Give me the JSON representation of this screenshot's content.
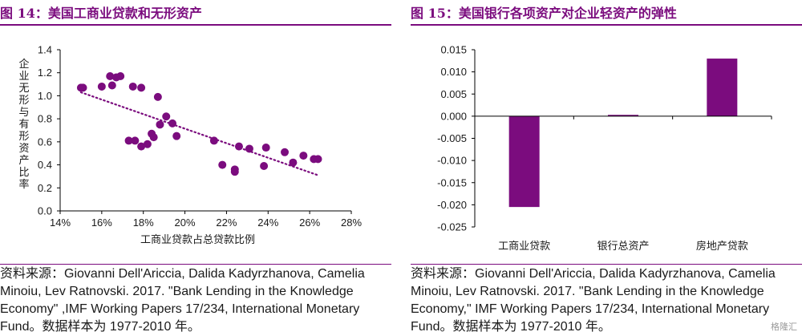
{
  "figures": [
    {
      "title": "图 14：美国工商业贷款和无形资产",
      "source": "资料来源：Giovanni Dell'Ariccia, Dalida Kadyrzhanova, Camelia Minoiu, Lev Ratnovski. 2017. \"Bank Lending in the Knowledge Economy\" ,IMF Working Papers 17/234, International Monetary Fund。数据样本为 1977-2010 年。"
    },
    {
      "title": "图 15：美国银行各项资产对企业轻资产的弹性",
      "source": "资料来源：Giovanni Dell'Ariccia, Dalida Kadyrzhanova, Camelia Minoiu, Lev Ratnovski. 2017. \"Bank Lending in the Knowledge Economy,\" IMF Working Papers 17/234, International Monetary Fund。数据样本为 1977-2010 年。"
    }
  ],
  "watermark": "格隆汇",
  "colors": {
    "accent": "#7B0C7E",
    "point": "#7B0C7E",
    "axis": "#000000"
  },
  "chart_data": [
    {
      "type": "scatter",
      "title": "",
      "xlabel": "工商业贷款占总贷款比例",
      "ylabel": "企业无形与有形资产比率",
      "xlim": [
        0.14,
        0.28
      ],
      "ylim": [
        0.0,
        1.4
      ],
      "xticks": [
        "14%",
        "16%",
        "18%",
        "20%",
        "22%",
        "24%",
        "26%",
        "28%"
      ],
      "yticks": [
        "0.0",
        "0.2",
        "0.4",
        "0.6",
        "0.8",
        "1.0",
        "1.2",
        "1.4"
      ],
      "trendline": {
        "style": "dotted",
        "x": [
          0.15,
          0.264
        ],
        "y": [
          1.03,
          0.31
        ]
      },
      "points": [
        {
          "x": 0.15,
          "y": 1.07
        },
        {
          "x": 0.151,
          "y": 1.07
        },
        {
          "x": 0.16,
          "y": 1.08
        },
        {
          "x": 0.164,
          "y": 1.17
        },
        {
          "x": 0.165,
          "y": 1.09
        },
        {
          "x": 0.167,
          "y": 1.16
        },
        {
          "x": 0.169,
          "y": 1.17
        },
        {
          "x": 0.175,
          "y": 1.08
        },
        {
          "x": 0.179,
          "y": 1.07
        },
        {
          "x": 0.173,
          "y": 0.61
        },
        {
          "x": 0.176,
          "y": 0.61
        },
        {
          "x": 0.179,
          "y": 0.56
        },
        {
          "x": 0.182,
          "y": 0.58
        },
        {
          "x": 0.184,
          "y": 0.67
        },
        {
          "x": 0.185,
          "y": 0.64
        },
        {
          "x": 0.187,
          "y": 0.99
        },
        {
          "x": 0.188,
          "y": 0.75
        },
        {
          "x": 0.191,
          "y": 0.82
        },
        {
          "x": 0.194,
          "y": 0.76
        },
        {
          "x": 0.196,
          "y": 0.65
        },
        {
          "x": 0.214,
          "y": 0.61
        },
        {
          "x": 0.218,
          "y": 0.4
        },
        {
          "x": 0.224,
          "y": 0.36
        },
        {
          "x": 0.224,
          "y": 0.34
        },
        {
          "x": 0.226,
          "y": 0.56
        },
        {
          "x": 0.231,
          "y": 0.54
        },
        {
          "x": 0.238,
          "y": 0.39
        },
        {
          "x": 0.239,
          "y": 0.55
        },
        {
          "x": 0.248,
          "y": 0.51
        },
        {
          "x": 0.252,
          "y": 0.42
        },
        {
          "x": 0.257,
          "y": 0.48
        },
        {
          "x": 0.262,
          "y": 0.45
        },
        {
          "x": 0.264,
          "y": 0.45
        }
      ],
      "grid": false
    },
    {
      "type": "bar",
      "title": "",
      "categories": [
        "工商业贷款",
        "银行总资产",
        "房地产贷款"
      ],
      "values": [
        -0.0205,
        0.0003,
        0.013
      ],
      "ylim": [
        -0.025,
        0.015
      ],
      "yticks": [
        "-0.025",
        "-0.020",
        "-0.015",
        "-0.010",
        "-0.005",
        "0.000",
        "0.005",
        "0.010",
        "0.015"
      ],
      "grid": false
    }
  ]
}
